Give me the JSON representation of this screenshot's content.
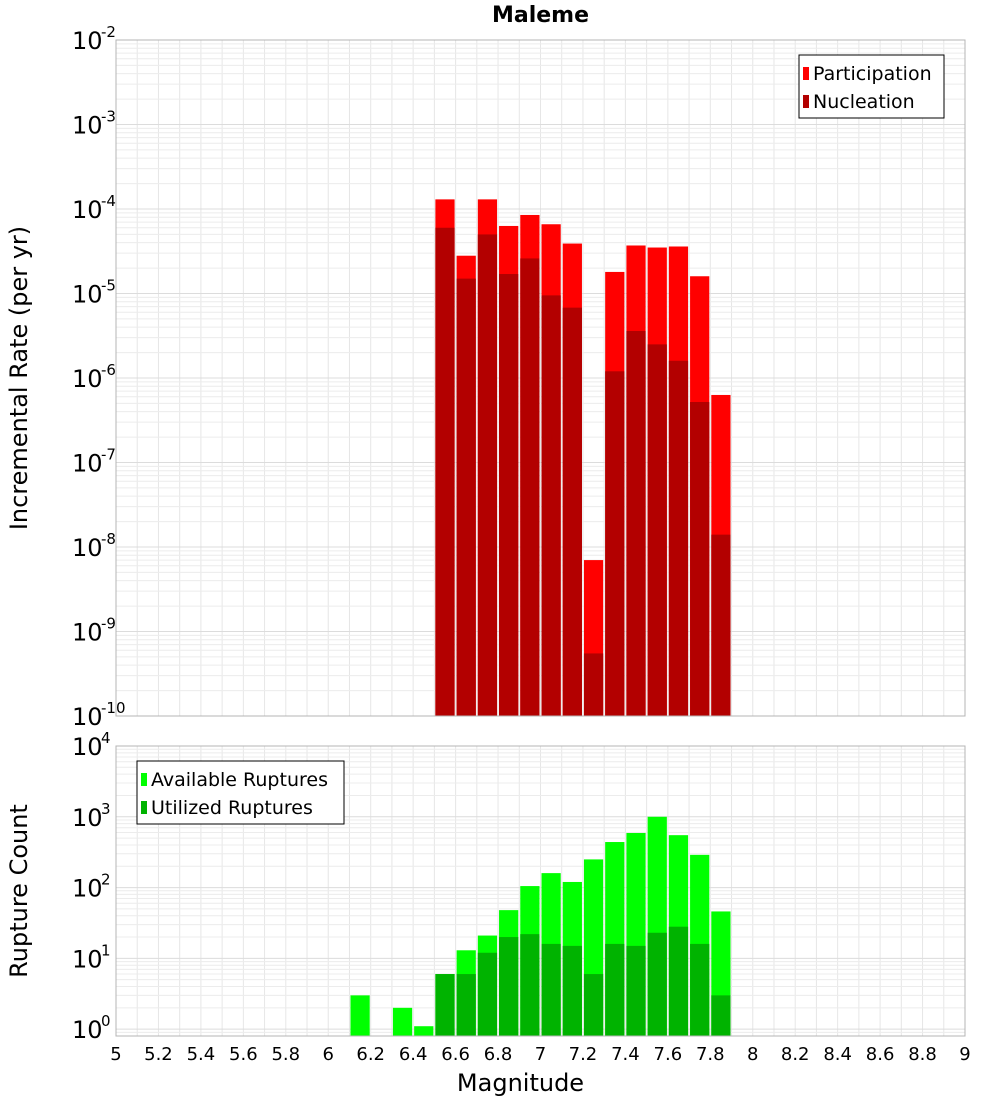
{
  "chart_data": [
    {
      "type": "bar",
      "title": "Maleme",
      "xlabel": "",
      "ylabel": "Incremental Rate (per yr)",
      "y_scale": "log",
      "ylim": [
        1e-10,
        0.01
      ],
      "xlim": [
        5,
        9
      ],
      "bar_width": 0.1,
      "y_ticks": [
        {
          "base": "10",
          "exp": "-10",
          "value": 1e-10
        },
        {
          "base": "10",
          "exp": "-9",
          "value": 1e-09
        },
        {
          "base": "10",
          "exp": "-8",
          "value": 1e-08
        },
        {
          "base": "10",
          "exp": "-7",
          "value": 1e-07
        },
        {
          "base": "10",
          "exp": "-6",
          "value": 1e-06
        },
        {
          "base": "10",
          "exp": "-5",
          "value": 1e-05
        },
        {
          "base": "10",
          "exp": "-4",
          "value": 0.0001
        },
        {
          "base": "10",
          "exp": "-3",
          "value": 0.001
        },
        {
          "base": "10",
          "exp": "-2",
          "value": 0.01
        }
      ],
      "legend_position": "top-right",
      "x": [
        6.55,
        6.65,
        6.75,
        6.85,
        6.95,
        7.05,
        7.15,
        7.25,
        7.35,
        7.45,
        7.55,
        7.65,
        7.75,
        7.85
      ],
      "series": [
        {
          "name": "Participation",
          "color": "#ff0000",
          "values": [
            0.00013,
            2.8e-05,
            0.00013,
            6.3e-05,
            8.5e-05,
            6.6e-05,
            3.9e-05,
            7e-09,
            1.8e-05,
            3.7e-05,
            3.5e-05,
            3.6e-05,
            1.6e-05,
            6.3e-07
          ]
        },
        {
          "name": "Nucleation",
          "color": "#b30000",
          "values": [
            6e-05,
            1.5e-05,
            5e-05,
            1.7e-05,
            2.6e-05,
            9.5e-06,
            6.8e-06,
            5.5e-10,
            1.2e-06,
            3.6e-06,
            2.5e-06,
            1.6e-06,
            5.2e-07,
            1.4e-08
          ]
        }
      ]
    },
    {
      "type": "bar",
      "title": "",
      "xlabel": "Magnitude",
      "ylabel": "Rupture Count",
      "y_scale": "log",
      "ylim": [
        0.8,
        10000.0
      ],
      "xlim": [
        5,
        9
      ],
      "bar_width": 0.1,
      "y_ticks": [
        {
          "base": "10",
          "exp": "0",
          "value": 1
        },
        {
          "base": "10",
          "exp": "1",
          "value": 10
        },
        {
          "base": "10",
          "exp": "2",
          "value": 100
        },
        {
          "base": "10",
          "exp": "3",
          "value": 1000
        },
        {
          "base": "10",
          "exp": "4",
          "value": 10000
        }
      ],
      "x_ticks": [
        "5",
        "5.2",
        "5.4",
        "5.6",
        "5.8",
        "6",
        "6.2",
        "6.4",
        "6.6",
        "6.8",
        "7",
        "7.2",
        "7.4",
        "7.6",
        "7.8",
        "8",
        "8.2",
        "8.4",
        "8.6",
        "8.8",
        "9"
      ],
      "legend_position": "top-left",
      "x": [
        6.15,
        6.35,
        6.45,
        6.55,
        6.65,
        6.75,
        6.85,
        6.95,
        7.05,
        7.15,
        7.25,
        7.35,
        7.45,
        7.55,
        7.65,
        7.75,
        7.85
      ],
      "series": [
        {
          "name": "Available Ruptures",
          "color": "#00ff00",
          "values": [
            3,
            2,
            1.1,
            6,
            13,
            21,
            48,
            105,
            160,
            120,
            250,
            440,
            590,
            1000,
            550,
            290,
            46
          ]
        },
        {
          "name": "Utilized Ruptures",
          "color": "#00b300",
          "values": [
            0,
            0,
            0,
            6,
            6,
            12,
            20,
            22,
            16,
            15,
            6,
            16,
            15,
            23,
            28,
            16,
            3
          ]
        }
      ]
    }
  ]
}
